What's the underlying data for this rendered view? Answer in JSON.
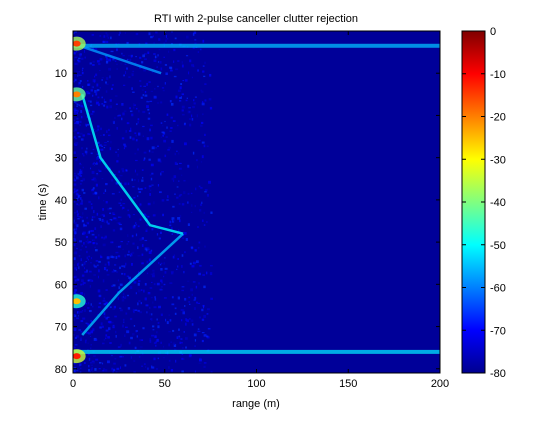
{
  "chart_data": {
    "type": "heatmap",
    "title": "RTI with 2-pulse canceller clutter rejection",
    "xlabel": "range (m)",
    "ylabel": "time (s)",
    "xlim": [
      0,
      200
    ],
    "ylim": [
      0,
      81
    ],
    "y_reversed": true,
    "x_ticks": [
      0,
      50,
      100,
      150,
      200
    ],
    "y_ticks": [
      10,
      20,
      30,
      40,
      50,
      60,
      70,
      80
    ],
    "colorbar": {
      "colormap": "jet",
      "clim": [
        -80,
        0
      ],
      "ticks": [
        0,
        -10,
        -20,
        -30,
        -40,
        -50,
        -60,
        -70,
        -80
      ]
    },
    "background_level_db": -78,
    "strong_returns": [
      {
        "time": 3,
        "range": 2,
        "level_db": -15
      },
      {
        "time": 15,
        "range": 2,
        "level_db": -20
      },
      {
        "time": 64,
        "range": 2,
        "level_db": -25
      },
      {
        "time": 77,
        "range": 2,
        "level_db": -12
      }
    ],
    "horizontal_bands": [
      {
        "time": 3.5,
        "level_db": -55
      },
      {
        "time": 76,
        "level_db": -52
      }
    ],
    "target_tracks": [
      {
        "points": [
          [
            3,
            0
          ],
          [
            10,
            48
          ]
        ],
        "level_db": -58
      },
      {
        "points": [
          [
            15,
            5
          ],
          [
            30,
            15
          ],
          [
            46,
            42
          ],
          [
            48,
            60
          ]
        ],
        "level_db": -50
      },
      {
        "points": [
          [
            48,
            60
          ],
          [
            62,
            25
          ],
          [
            72,
            5
          ]
        ],
        "level_db": -55
      }
    ]
  }
}
